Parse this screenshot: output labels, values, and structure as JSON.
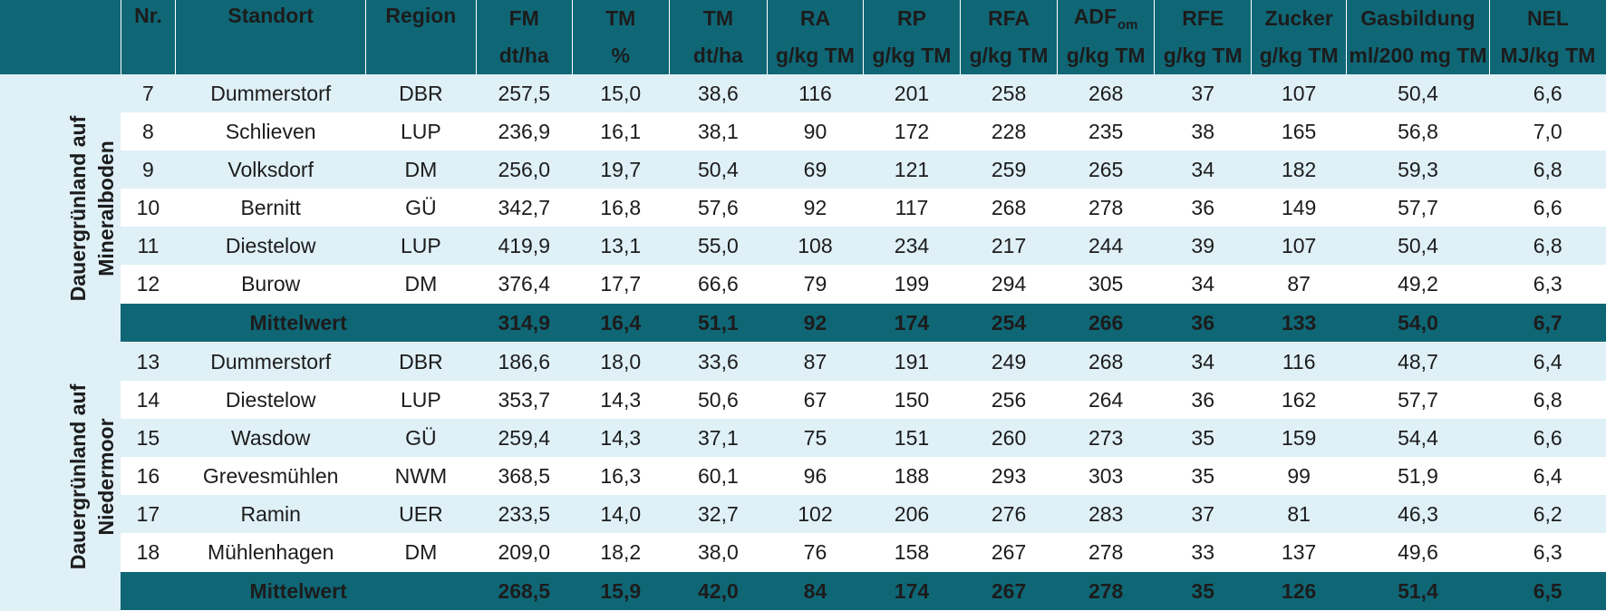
{
  "header": {
    "columns": [
      {
        "label": "Nr.",
        "unit": ""
      },
      {
        "label": "Standort",
        "unit": ""
      },
      {
        "label": "Region",
        "unit": ""
      },
      {
        "label": "FM",
        "unit": "dt/ha"
      },
      {
        "label": "TM",
        "unit": "%"
      },
      {
        "label": "TM",
        "unit": "dt/ha"
      },
      {
        "label": "RA",
        "unit": "g/kg TM"
      },
      {
        "label": "RP",
        "unit": "g/kg TM"
      },
      {
        "label": "RFA",
        "unit": "g/kg TM"
      },
      {
        "label": "ADF",
        "sub": "om",
        "unit": "g/kg TM"
      },
      {
        "label": "RFE",
        "unit": "g/kg TM"
      },
      {
        "label": "Zucker",
        "unit": "g/kg TM"
      },
      {
        "label": "Gasbildung",
        "unit": "ml/200 mg TM"
      },
      {
        "label": "NEL",
        "unit": "MJ/kg TM"
      }
    ]
  },
  "groups": [
    {
      "label_line1": "Dauergrünland auf",
      "label_line2": "Mineralboden",
      "rows": [
        [
          "7",
          "Dummerstorf",
          "DBR",
          "257,5",
          "15,0",
          "38,6",
          "116",
          "201",
          "258",
          "268",
          "37",
          "107",
          "50,4",
          "6,6"
        ],
        [
          "8",
          "Schlieven",
          "LUP",
          "236,9",
          "16,1",
          "38,1",
          "90",
          "172",
          "228",
          "235",
          "38",
          "165",
          "56,8",
          "7,0"
        ],
        [
          "9",
          "Volksdorf",
          "DM",
          "256,0",
          "19,7",
          "50,4",
          "69",
          "121",
          "259",
          "265",
          "34",
          "182",
          "59,3",
          "6,8"
        ],
        [
          "10",
          "Bernitt",
          "GÜ",
          "342,7",
          "16,8",
          "57,6",
          "92",
          "117",
          "268",
          "278",
          "36",
          "149",
          "57,7",
          "6,6"
        ],
        [
          "11",
          "Diestelow",
          "LUP",
          "419,9",
          "13,1",
          "55,0",
          "108",
          "234",
          "217",
          "244",
          "39",
          "107",
          "50,4",
          "6,8"
        ],
        [
          "12",
          "Burow",
          "DM",
          "376,4",
          "17,7",
          "66,6",
          "79",
          "199",
          "294",
          "305",
          "34",
          "87",
          "49,2",
          "6,3"
        ]
      ],
      "mean": {
        "label": "Mittelwert",
        "values": [
          "314,9",
          "16,4",
          "51,1",
          "92",
          "174",
          "254",
          "266",
          "36",
          "133",
          "54,0",
          "6,7"
        ]
      }
    },
    {
      "label_line1": "Dauergrünland auf",
      "label_line2": "Niedermoor",
      "rows": [
        [
          "13",
          "Dummerstorf",
          "DBR",
          "186,6",
          "18,0",
          "33,6",
          "87",
          "191",
          "249",
          "268",
          "34",
          "116",
          "48,7",
          "6,4"
        ],
        [
          "14",
          "Diestelow",
          "LUP",
          "353,7",
          "14,3",
          "50,6",
          "67",
          "150",
          "256",
          "264",
          "36",
          "162",
          "57,7",
          "6,8"
        ],
        [
          "15",
          "Wasdow",
          "GÜ",
          "259,4",
          "14,3",
          "37,1",
          "75",
          "151",
          "260",
          "273",
          "35",
          "159",
          "54,4",
          "6,6"
        ],
        [
          "16",
          "Grevesmühlen",
          "NWM",
          "368,5",
          "16,3",
          "60,1",
          "96",
          "188",
          "293",
          "303",
          "35",
          "99",
          "51,9",
          "6,4"
        ],
        [
          "17",
          "Ramin",
          "UER",
          "233,5",
          "14,0",
          "32,7",
          "102",
          "206",
          "276",
          "283",
          "37",
          "81",
          "46,3",
          "6,2"
        ],
        [
          "18",
          "Mühlenhagen",
          "DM",
          "209,0",
          "18,2",
          "38,0",
          "76",
          "158",
          "267",
          "278",
          "33",
          "137",
          "49,6",
          "6,3"
        ]
      ],
      "mean": {
        "label": "Mittelwert",
        "values": [
          "268,5",
          "15,9",
          "42,0",
          "84",
          "174",
          "267",
          "278",
          "35",
          "126",
          "51,4",
          "6,5"
        ]
      }
    }
  ]
}
